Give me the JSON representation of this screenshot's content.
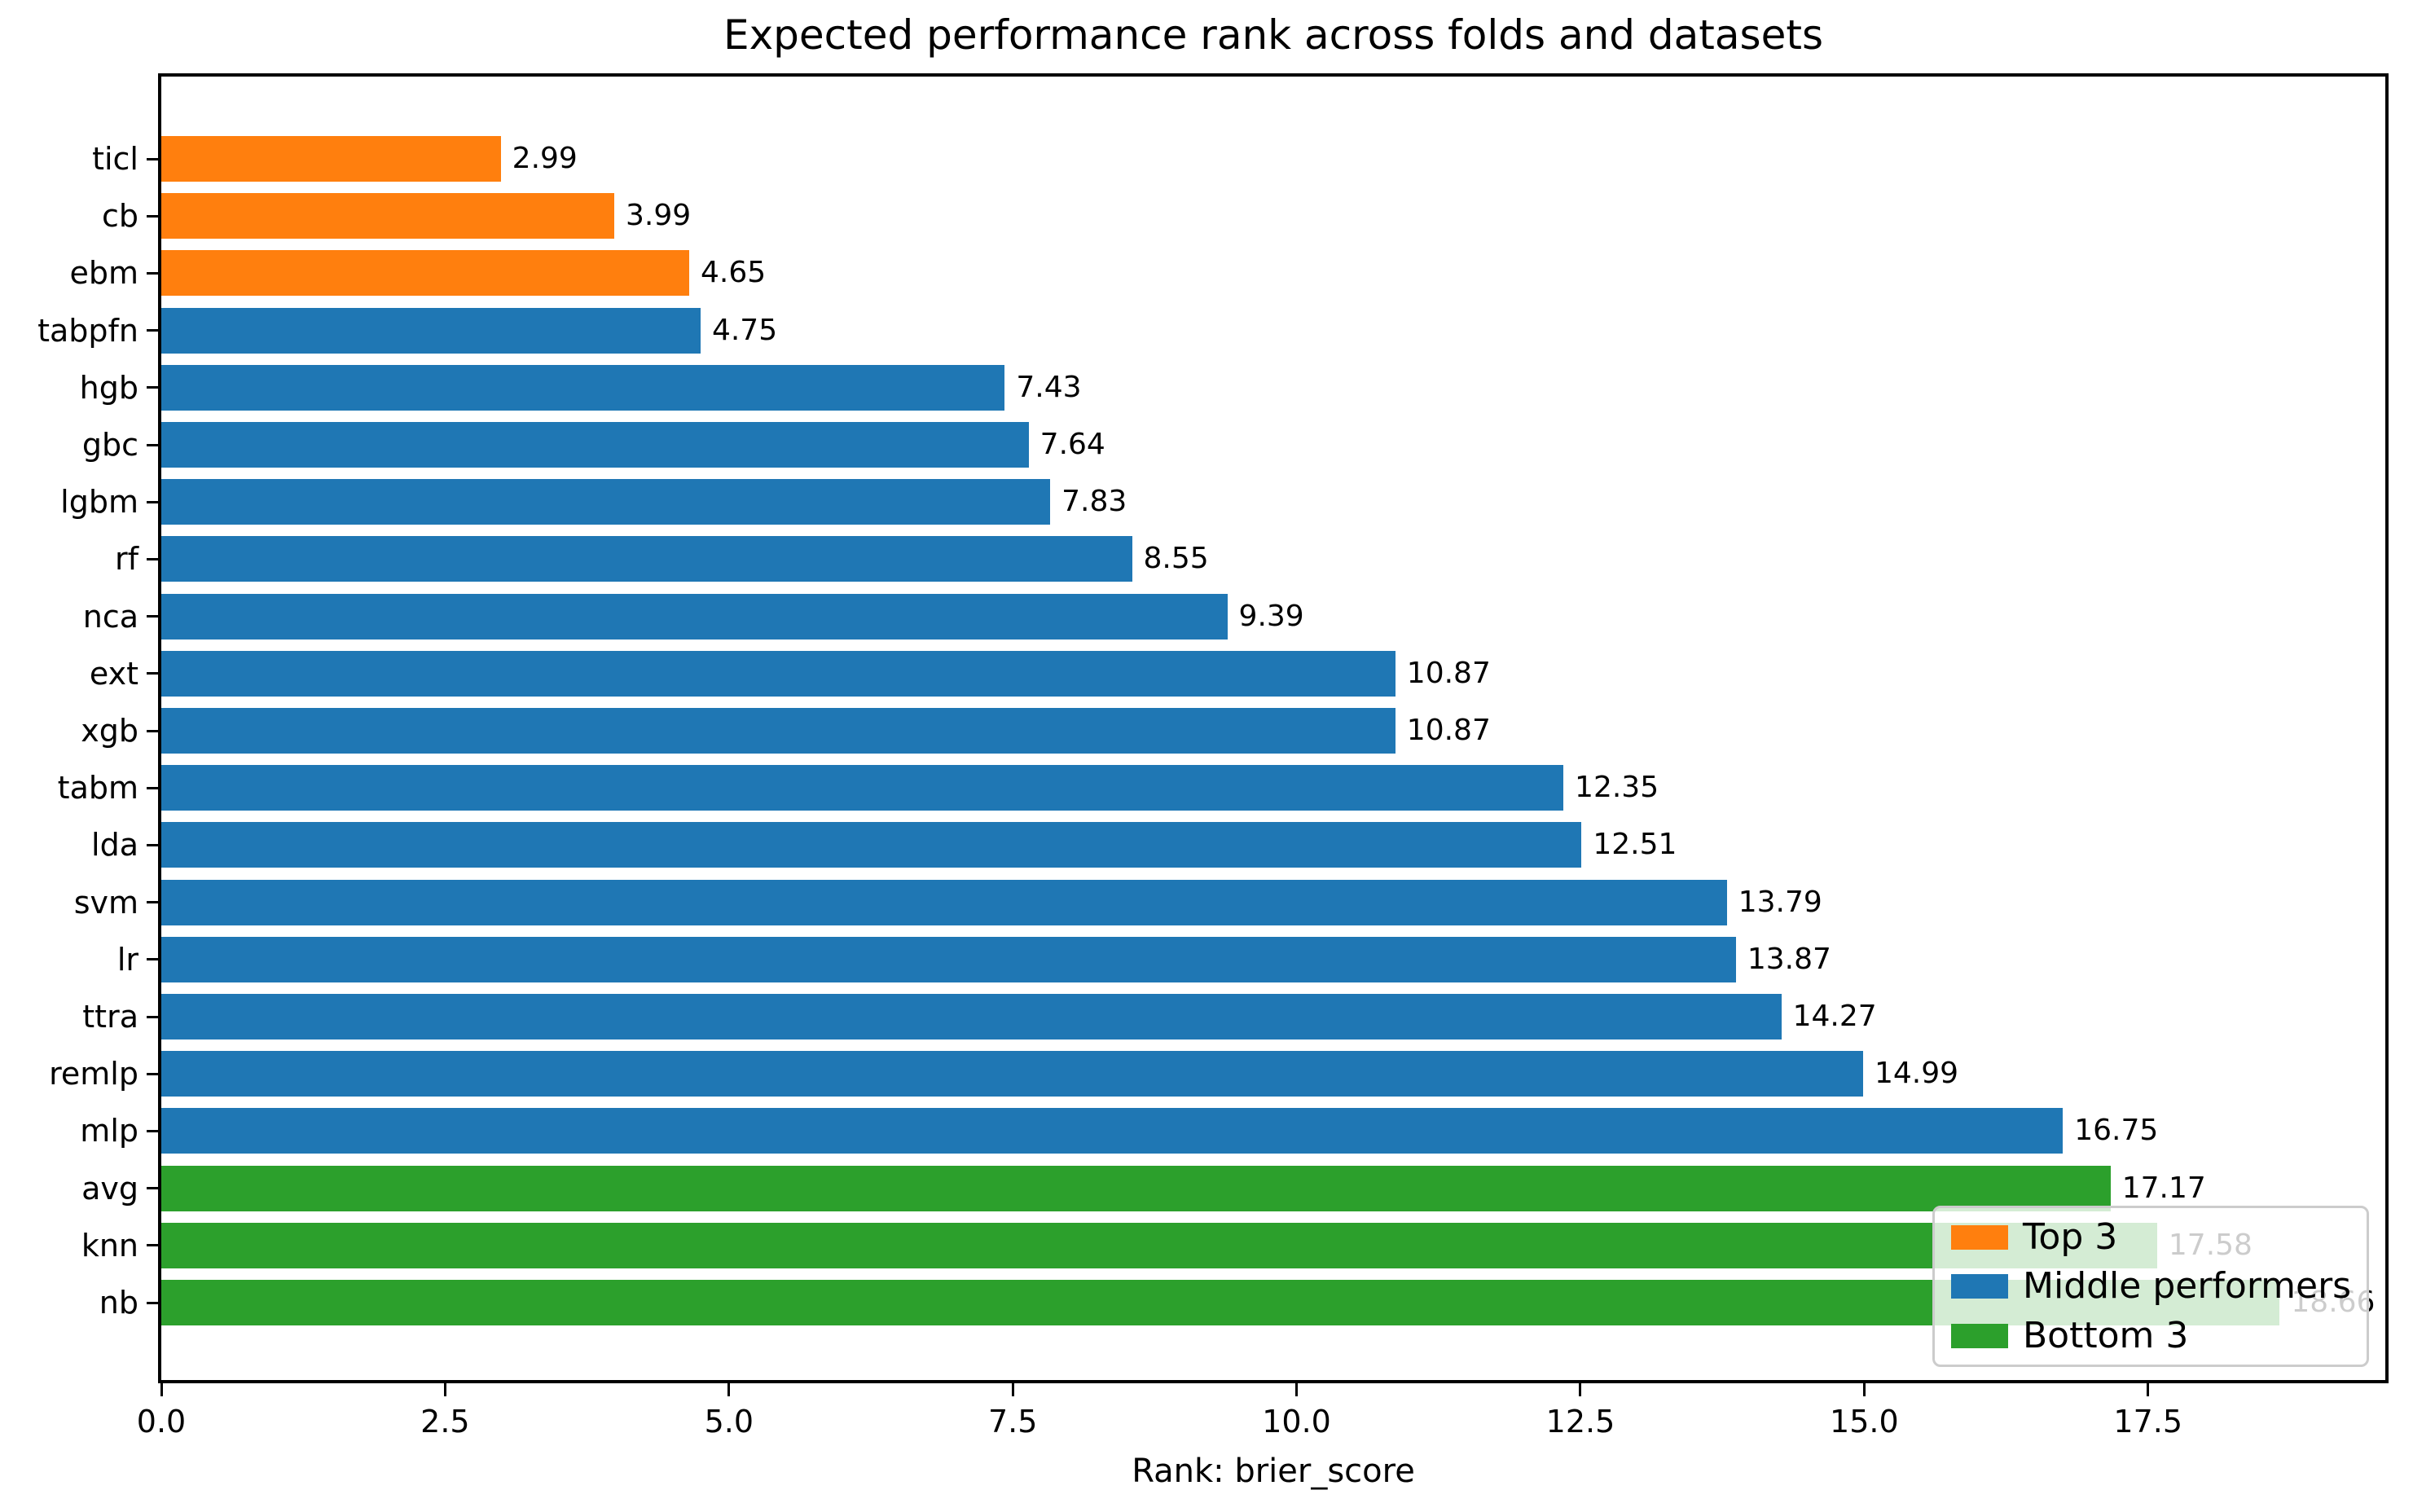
{
  "title": "Expected performance rank across folds and datasets",
  "x_axis_label": "Rank: brier_score",
  "colors": {
    "top3": "#ff7f0e",
    "middle": "#1f77b4",
    "bottom3": "#2ca02c",
    "axis": "#000000",
    "legend_border": "#cccccc"
  },
  "legend": {
    "entries": [
      {
        "label": "Top 3",
        "group": "top3"
      },
      {
        "label": "Middle performers",
        "group": "middle"
      },
      {
        "label": "Bottom 3",
        "group": "bottom3"
      }
    ]
  },
  "chart_data": {
    "type": "bar",
    "orientation": "horizontal",
    "title": "Expected performance rank across folds and datasets",
    "xlabel": "Rank: brier_score",
    "ylabel": "",
    "grid": false,
    "legend_position": "lower right",
    "xlim": [
      0,
      19.59
    ],
    "x_ticks": [
      {
        "value": 0,
        "label": "0.0"
      },
      {
        "value": 2.5,
        "label": "2.5"
      },
      {
        "value": 5,
        "label": "5.0"
      },
      {
        "value": 7.5,
        "label": "7.5"
      },
      {
        "value": 10,
        "label": "10.0"
      },
      {
        "value": 12.5,
        "label": "12.5"
      },
      {
        "value": 15,
        "label": "15.0"
      },
      {
        "value": 17.5,
        "label": "17.5"
      }
    ],
    "categories": [
      "ticl",
      "cb",
      "ebm",
      "tabpfn",
      "hgb",
      "gbc",
      "lgbm",
      "rf",
      "nca",
      "ext",
      "xgb",
      "tabm",
      "lda",
      "svm",
      "lr",
      "ttra",
      "remlp",
      "mlp",
      "avg",
      "knn",
      "nb"
    ],
    "values": [
      2.99,
      3.99,
      4.65,
      4.75,
      7.43,
      7.64,
      7.83,
      8.55,
      9.39,
      10.87,
      10.87,
      12.35,
      12.51,
      13.79,
      13.87,
      14.27,
      14.99,
      16.75,
      17.17,
      17.58,
      18.66
    ],
    "value_labels": [
      "2.99",
      "3.99",
      "4.65",
      "4.75",
      "7.43",
      "7.64",
      "7.83",
      "8.55",
      "9.39",
      "10.87",
      "10.87",
      "12.35",
      "12.51",
      "13.79",
      "13.87",
      "14.27",
      "14.99",
      "16.75",
      "17.17",
      "17.58",
      "18.66"
    ],
    "groups": [
      "top3",
      "top3",
      "top3",
      "middle",
      "middle",
      "middle",
      "middle",
      "middle",
      "middle",
      "middle",
      "middle",
      "middle",
      "middle",
      "middle",
      "middle",
      "middle",
      "middle",
      "middle",
      "bottom3",
      "bottom3",
      "bottom3"
    ]
  }
}
